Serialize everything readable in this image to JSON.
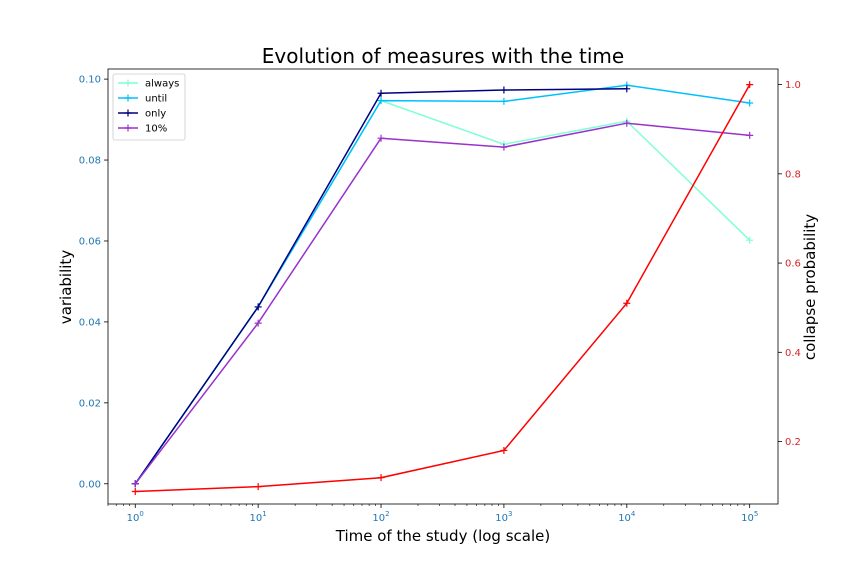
{
  "chart_data": {
    "type": "line",
    "title": "Evolution of measures with the time",
    "xlabel": "Time of the study (log scale)",
    "ylabel": "variability",
    "y2label": "collapse probability",
    "x_scale": "log",
    "x": [
      1,
      10,
      100,
      1000,
      10000,
      100000
    ],
    "x_tick_labels": [
      {
        "base": "10",
        "exp": "0"
      },
      {
        "base": "10",
        "exp": "1"
      },
      {
        "base": "10",
        "exp": "2"
      },
      {
        "base": "10",
        "exp": "3"
      },
      {
        "base": "10",
        "exp": "4"
      },
      {
        "base": "10",
        "exp": "5"
      }
    ],
    "xlim": [
      0.6,
      170000
    ],
    "ylim": [
      -0.005,
      0.1025
    ],
    "y_ticks": [
      "0.00",
      "0.02",
      "0.04",
      "0.06",
      "0.08",
      "0.10"
    ],
    "y2lim": [
      0.06,
      1.035
    ],
    "y2_ticks": [
      "0.2",
      "0.4",
      "0.6",
      "0.8",
      "1.0"
    ],
    "grid": false,
    "legend_position": "top-left",
    "left_axis_color": "#1f77b4",
    "right_axis_color": "#d62728",
    "series": [
      {
        "name": "always",
        "axis": "left",
        "color": "#7fffd4",
        "values": [
          0.0,
          0.0437,
          0.0947,
          0.0839,
          0.0896,
          0.0602
        ]
      },
      {
        "name": "until",
        "axis": "left",
        "color": "#00bfff",
        "values": [
          0.0,
          0.0437,
          0.0947,
          0.0945,
          0.0985,
          0.0941
        ]
      },
      {
        "name": "only",
        "axis": "left",
        "color": "#000080",
        "values": [
          0.0,
          0.0437,
          0.0965,
          0.0973,
          0.0976,
          null
        ]
      },
      {
        "name": "10%",
        "axis": "left",
        "color": "#9932cc",
        "values": [
          0.0,
          0.0397,
          0.0854,
          0.0832,
          0.0891,
          0.0861
        ]
      },
      {
        "axis": "right",
        "color": "#ff0000",
        "values": [
          0.088,
          0.099,
          0.119,
          0.18,
          0.51,
          1.0
        ]
      }
    ]
  }
}
